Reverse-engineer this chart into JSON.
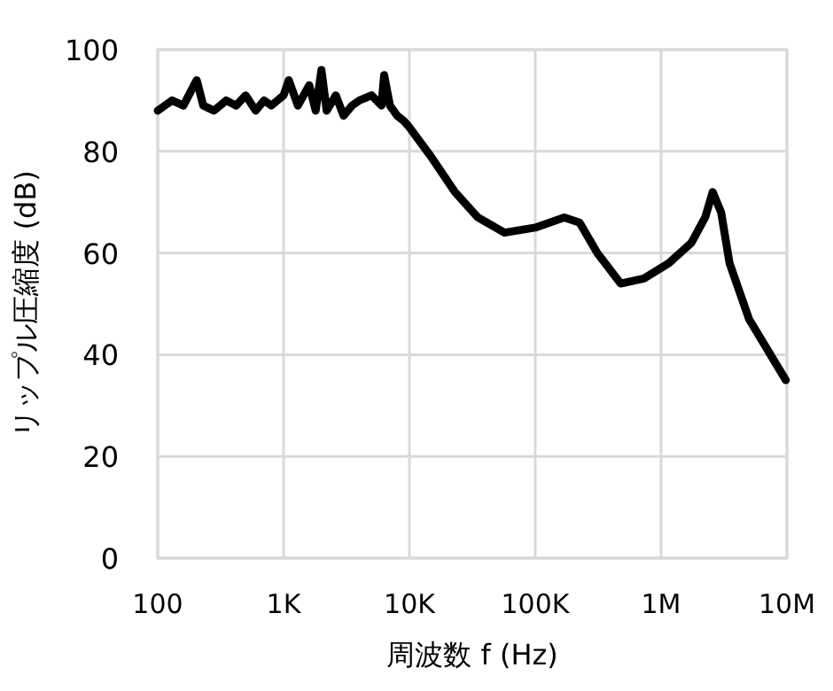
{
  "chart_data": {
    "type": "line",
    "xlabel": "周波数 f (Hz)",
    "ylabel": "リップル圧縮度 (dB)",
    "log": "x",
    "grid": true,
    "line_style": "solid",
    "xlim": [
      100,
      10000000
    ],
    "xticks": [
      {
        "value": 100,
        "label": "100"
      },
      {
        "value": 1000,
        "label": "1K"
      },
      {
        "value": 10000,
        "label": "10K"
      },
      {
        "value": 100000,
        "label": "100K"
      },
      {
        "value": 1000000,
        "label": "1M"
      },
      {
        "value": 10000000,
        "label": "10M"
      }
    ],
    "ylim": [
      0,
      100
    ],
    "yticks": [
      0,
      20,
      40,
      60,
      80,
      100
    ],
    "series": [
      {
        "color": "#000000",
        "x": [
          100,
          130,
          160,
          204,
          230,
          280,
          350,
          420,
          500,
          600,
          700,
          800,
          1000,
          1100,
          1300,
          1600,
          1800,
          2000,
          2200,
          2600,
          3000,
          3500,
          4000,
          5000,
          6000,
          6300,
          7000,
          8000,
          9000,
          9800,
          14800,
          23000,
          35000,
          57000,
          100000,
          170000,
          225000,
          311000,
          477000,
          730000,
          1150000,
          1740000,
          2240000,
          2570000,
          3000000,
          3500000,
          5000000,
          9800000
        ],
        "values": [
          88,
          90,
          89,
          94,
          89,
          88,
          90,
          89,
          91,
          88,
          90,
          89,
          91,
          94,
          89,
          93,
          88,
          96,
          88,
          91,
          87,
          89,
          90,
          91,
          89,
          95,
          89,
          87,
          86,
          85,
          79,
          72,
          67,
          64,
          65,
          67,
          66,
          60,
          54,
          55,
          58,
          62,
          67,
          72,
          68,
          58,
          47,
          35
        ]
      }
    ]
  }
}
